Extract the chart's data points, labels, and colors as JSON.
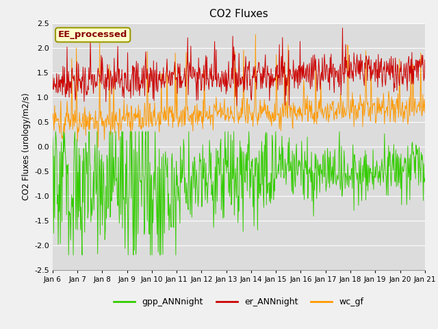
{
  "title": "CO2 Fluxes",
  "ylabel": "CO2 Fluxes (urology/m2/s)",
  "xlabel": "",
  "annotation": "EE_processed",
  "ylim": [
    -2.5,
    2.5
  ],
  "xtick_labels": [
    "Jan 6",
    "Jan 7",
    "Jan 8",
    "Jan 9",
    "Jan 10",
    "Jan 11",
    "Jan 12",
    "Jan 13",
    "Jan 14",
    "Jan 15",
    "Jan 16",
    "Jan 17",
    "Jan 18",
    "Jan 19",
    "Jan 20",
    "Jan 21"
  ],
  "series": {
    "gpp_ANNnight": {
      "color": "#33cc00",
      "lw": 0.7
    },
    "er_ANNnight": {
      "color": "#cc0000",
      "lw": 0.7
    },
    "wc_gf": {
      "color": "#ff9900",
      "lw": 0.7
    }
  },
  "legend_colors": {
    "gpp_ANNnight": "#33cc00",
    "er_ANNnight": "#cc0000",
    "wc_gf": "#ff9900"
  },
  "fig_facecolor": "#f0f0f0",
  "ax_facecolor": "#dcdcdc",
  "title_fontsize": 11,
  "annotation_color": "#880000",
  "annotation_bg": "#ffffcc",
  "annotation_border": "#999900"
}
